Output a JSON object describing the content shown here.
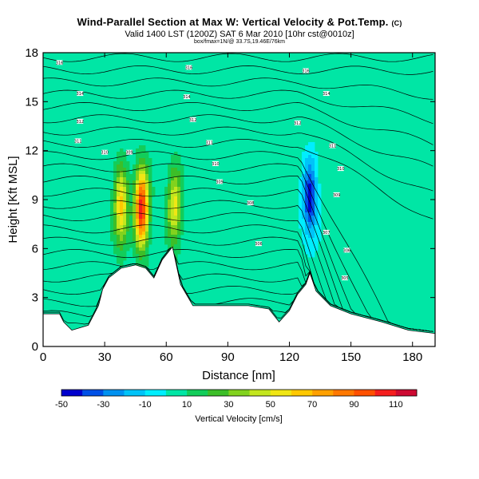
{
  "title": "Wind-Parallel Section at Max W: Vertical Velocity & Pot.Temp.",
  "title_mark": "(C)",
  "subtitle": "Valid 1400 LST (1200Z) SAT 6 Mar 2010 [10hr cst@0010z]",
  "subtitle2": "box/fmax=1N/@ 33.7S,19.46E/76km",
  "chart_data": {
    "type": "heatmap",
    "xlabel": "Distance [nm]",
    "ylabel": "Height [Kft MSL]",
    "xlim": [
      0,
      191
    ],
    "ylim": [
      0,
      18
    ],
    "xticks": [
      0,
      30,
      60,
      90,
      120,
      150,
      180
    ],
    "yticks": [
      0,
      3,
      6,
      9,
      12,
      15,
      18
    ],
    "colorbar": {
      "label": "Vertical Velocity [cm/s]",
      "tick_labels": [
        "-50",
        "-30",
        "-10",
        "10",
        "30",
        "50",
        "70",
        "90",
        "110"
      ],
      "bounds": [
        -50,
        -40,
        -30,
        -20,
        -10,
        0,
        10,
        20,
        30,
        40,
        50,
        60,
        70,
        80,
        90,
        100,
        110,
        120
      ],
      "colors": [
        "#0000cd",
        "#0050e6",
        "#0091f0",
        "#00c3f8",
        "#00eefe",
        "#00e6a5",
        "#12cd5a",
        "#3cbe28",
        "#82d21e",
        "#c3e61e",
        "#f0e614",
        "#ffc800",
        "#ffa000",
        "#ff7800",
        "#ff5000",
        "#f51e1e",
        "#cd0a32"
      ]
    },
    "updrafts": [
      {
        "x": 38,
        "z": 8.5,
        "w": 60
      },
      {
        "x": 48,
        "z": 8.5,
        "w": 105
      },
      {
        "x": 64,
        "z": 8.5,
        "w": 50
      },
      {
        "x": 130,
        "z": 9.0,
        "w": -50
      }
    ],
    "terrain_kft": [
      [
        0,
        2.0
      ],
      [
        8,
        2.0
      ],
      [
        10,
        1.5
      ],
      [
        14,
        1.0
      ],
      [
        22,
        1.3
      ],
      [
        27,
        2.5
      ],
      [
        29,
        3.5
      ],
      [
        32,
        4.2
      ],
      [
        38,
        4.8
      ],
      [
        45,
        5.0
      ],
      [
        50,
        4.8
      ],
      [
        54,
        4.2
      ],
      [
        58,
        5.3
      ],
      [
        63,
        6.1
      ],
      [
        67,
        3.8
      ],
      [
        73,
        2.5
      ],
      [
        80,
        2.5
      ],
      [
        90,
        2.5
      ],
      [
        100,
        2.5
      ],
      [
        110,
        2.3
      ],
      [
        115,
        1.5
      ],
      [
        120,
        2.2
      ],
      [
        124,
        3.2
      ],
      [
        128,
        3.8
      ],
      [
        130,
        4.5
      ],
      [
        133,
        3.4
      ],
      [
        140,
        2.5
      ],
      [
        150,
        2.0
      ],
      [
        165,
        1.5
      ],
      [
        178,
        1.0
      ],
      [
        191,
        0.8
      ]
    ],
    "theta_labels": [
      {
        "x": 8,
        "z": 17.4,
        "text": "316"
      },
      {
        "x": 18,
        "z": 15.5,
        "text": "314"
      },
      {
        "x": 18,
        "z": 13.8,
        "text": "312"
      },
      {
        "x": 17,
        "z": 12.6,
        "text": "311"
      },
      {
        "x": 30,
        "z": 11.9,
        "text": "310"
      },
      {
        "x": 42,
        "z": 11.9,
        "text": "309"
      },
      {
        "x": 71,
        "z": 17.1,
        "text": "316"
      },
      {
        "x": 70,
        "z": 15.3,
        "text": "314"
      },
      {
        "x": 73,
        "z": 13.9,
        "text": "312"
      },
      {
        "x": 81,
        "z": 12.5,
        "text": "311"
      },
      {
        "x": 84,
        "z": 11.2,
        "text": "310"
      },
      {
        "x": 86,
        "z": 10.1,
        "text": "309"
      },
      {
        "x": 101,
        "z": 8.8,
        "text": "308"
      },
      {
        "x": 105,
        "z": 6.3,
        "text": "306"
      },
      {
        "x": 128,
        "z": 16.9,
        "text": "316"
      },
      {
        "x": 138,
        "z": 15.5,
        "text": "314"
      },
      {
        "x": 124,
        "z": 13.7,
        "text": "312"
      },
      {
        "x": 141,
        "z": 12.3,
        "text": "311"
      },
      {
        "x": 145,
        "z": 10.9,
        "text": "310"
      },
      {
        "x": 143,
        "z": 9.3,
        "text": "309"
      },
      {
        "x": 138,
        "z": 7.0,
        "text": "307"
      },
      {
        "x": 148,
        "z": 5.9,
        "text": "306"
      },
      {
        "x": 147,
        "z": 4.2,
        "text": "305"
      }
    ]
  }
}
